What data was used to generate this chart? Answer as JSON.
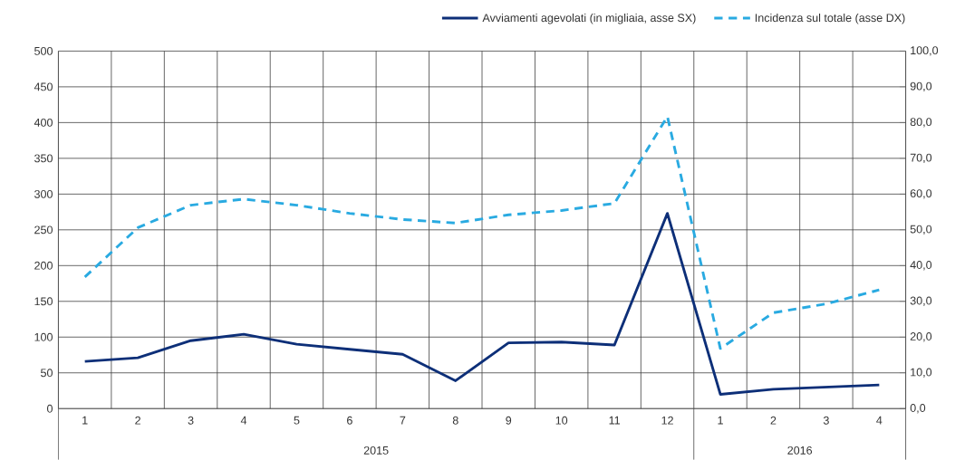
{
  "chart_data": {
    "type": "line",
    "categories": [
      "1",
      "2",
      "3",
      "4",
      "5",
      "6",
      "7",
      "8",
      "9",
      "10",
      "11",
      "12",
      "1",
      "2",
      "3",
      "4"
    ],
    "series": [
      {
        "name": "Avviamenti agevolati (in migliaia, asse SX)",
        "color": "#0d2f78",
        "line_style": "solid",
        "values": [
          66,
          71,
          95,
          104,
          90,
          83,
          76,
          39,
          92,
          93,
          89,
          273,
          20,
          27,
          30,
          33
        ]
      },
      {
        "name": "Incidenza sul totale (asse DX)",
        "color": "#29aae1",
        "line_style": "dashed",
        "axis": "y2",
        "values": [
          36.8,
          50.6,
          56.9,
          58.6,
          56.9,
          54.6,
          52.9,
          51.9,
          54.2,
          55.4,
          57.4,
          81.7,
          16.8,
          26.8,
          29.3,
          33.2
        ]
      }
    ],
    "ylim": [
      0,
      500
    ],
    "yticks": [
      0,
      50,
      100,
      150,
      200,
      250,
      300,
      350,
      400,
      450,
      500
    ],
    "y2lim": [
      0,
      100
    ],
    "y2ticks": [
      {
        "value": 0,
        "label": "0,0"
      },
      {
        "value": 10,
        "label": "10,0"
      },
      {
        "value": 20,
        "label": "20,0"
      },
      {
        "value": 30,
        "label": "30,0"
      },
      {
        "value": 40,
        "label": "40,0"
      },
      {
        "value": 50,
        "label": "50,0"
      },
      {
        "value": 60,
        "label": "60,0"
      },
      {
        "value": 70,
        "label": "70,0"
      },
      {
        "value": 80,
        "label": "80,0"
      },
      {
        "value": 90,
        "label": "90,0"
      },
      {
        "value": 100,
        "label": "100,0"
      }
    ],
    "annotations": [
      "2015",
      "2016"
    ],
    "grid": true,
    "legend": "top right"
  }
}
